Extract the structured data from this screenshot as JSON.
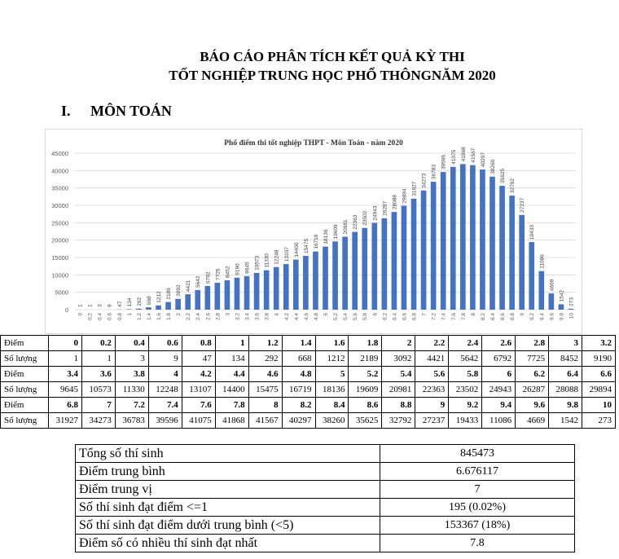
{
  "header": {
    "line1": "BÁO CÁO PHÂN TÍCH KẾT QUẢ KỲ THI",
    "line2": "TỐT NGHIỆP TRUNG HỌC PHỔ THÔNGNĂM 2020"
  },
  "section": {
    "number": "I.",
    "title": "MÔN TOÁN"
  },
  "chart_data": {
    "type": "bar",
    "title": "Phổ điểm thi tốt nghiệp THPT - Môn Toán - năm 2020",
    "xlabel": "",
    "ylabel": "",
    "ylim": [
      0,
      45000
    ],
    "yticks": [
      0,
      5000,
      10000,
      15000,
      20000,
      25000,
      30000,
      35000,
      40000,
      45000
    ],
    "grid": true,
    "color": "#4472c4",
    "categories": [
      "0",
      "0.2",
      "0.4",
      "0.6",
      "0.8",
      "1",
      "1.2",
      "1.4",
      "1.6",
      "1.8",
      "2",
      "2.2",
      "2.4",
      "2.6",
      "2.8",
      "3",
      "3.2",
      "3.4",
      "3.6",
      "3.8",
      "4",
      "4.2",
      "4.4",
      "4.6",
      "4.8",
      "5",
      "5.2",
      "5.4",
      "5.6",
      "5.8",
      "6",
      "6.2",
      "6.4",
      "6.6",
      "6.8",
      "7",
      "7.2",
      "7.4",
      "7.6",
      "7.8",
      "8",
      "8.2",
      "8.4",
      "8.6",
      "8.8",
      "9",
      "9.2",
      "9.4",
      "9.6",
      "9.8",
      "10"
    ],
    "values": [
      1,
      1,
      3,
      9,
      47,
      134,
      292,
      668,
      1212,
      2189,
      3092,
      4421,
      5642,
      6792,
      7725,
      8452,
      9190,
      9645,
      10573,
      11330,
      12248,
      13107,
      14400,
      15475,
      16719,
      18136,
      19609,
      20981,
      22363,
      23502,
      24943,
      26287,
      28088,
      29894,
      31927,
      34273,
      36783,
      39596,
      41075,
      41868,
      41567,
      40297,
      38260,
      35625,
      32792,
      27237,
      19433,
      11086,
      4669,
      1542,
      273
    ]
  },
  "table": {
    "score_label": "Điểm",
    "count_label": "Số lượng"
  },
  "stats": [
    {
      "label": "Tổng số thí sinh",
      "value": "845473"
    },
    {
      "label": "Điểm trung bình",
      "value": "6.676117"
    },
    {
      "label": "Điểm trung vị",
      "value": "7"
    },
    {
      "label": "Số thí sinh đạt điểm <=1",
      "value": "195 (0.02%)"
    },
    {
      "label": "Số thí sinh đạt điểm dưới trung bình (<5)",
      "value": "153367 (18%)"
    },
    {
      "label": "Điểm số có nhiều thí sinh đạt nhất",
      "value": "7.8"
    }
  ]
}
